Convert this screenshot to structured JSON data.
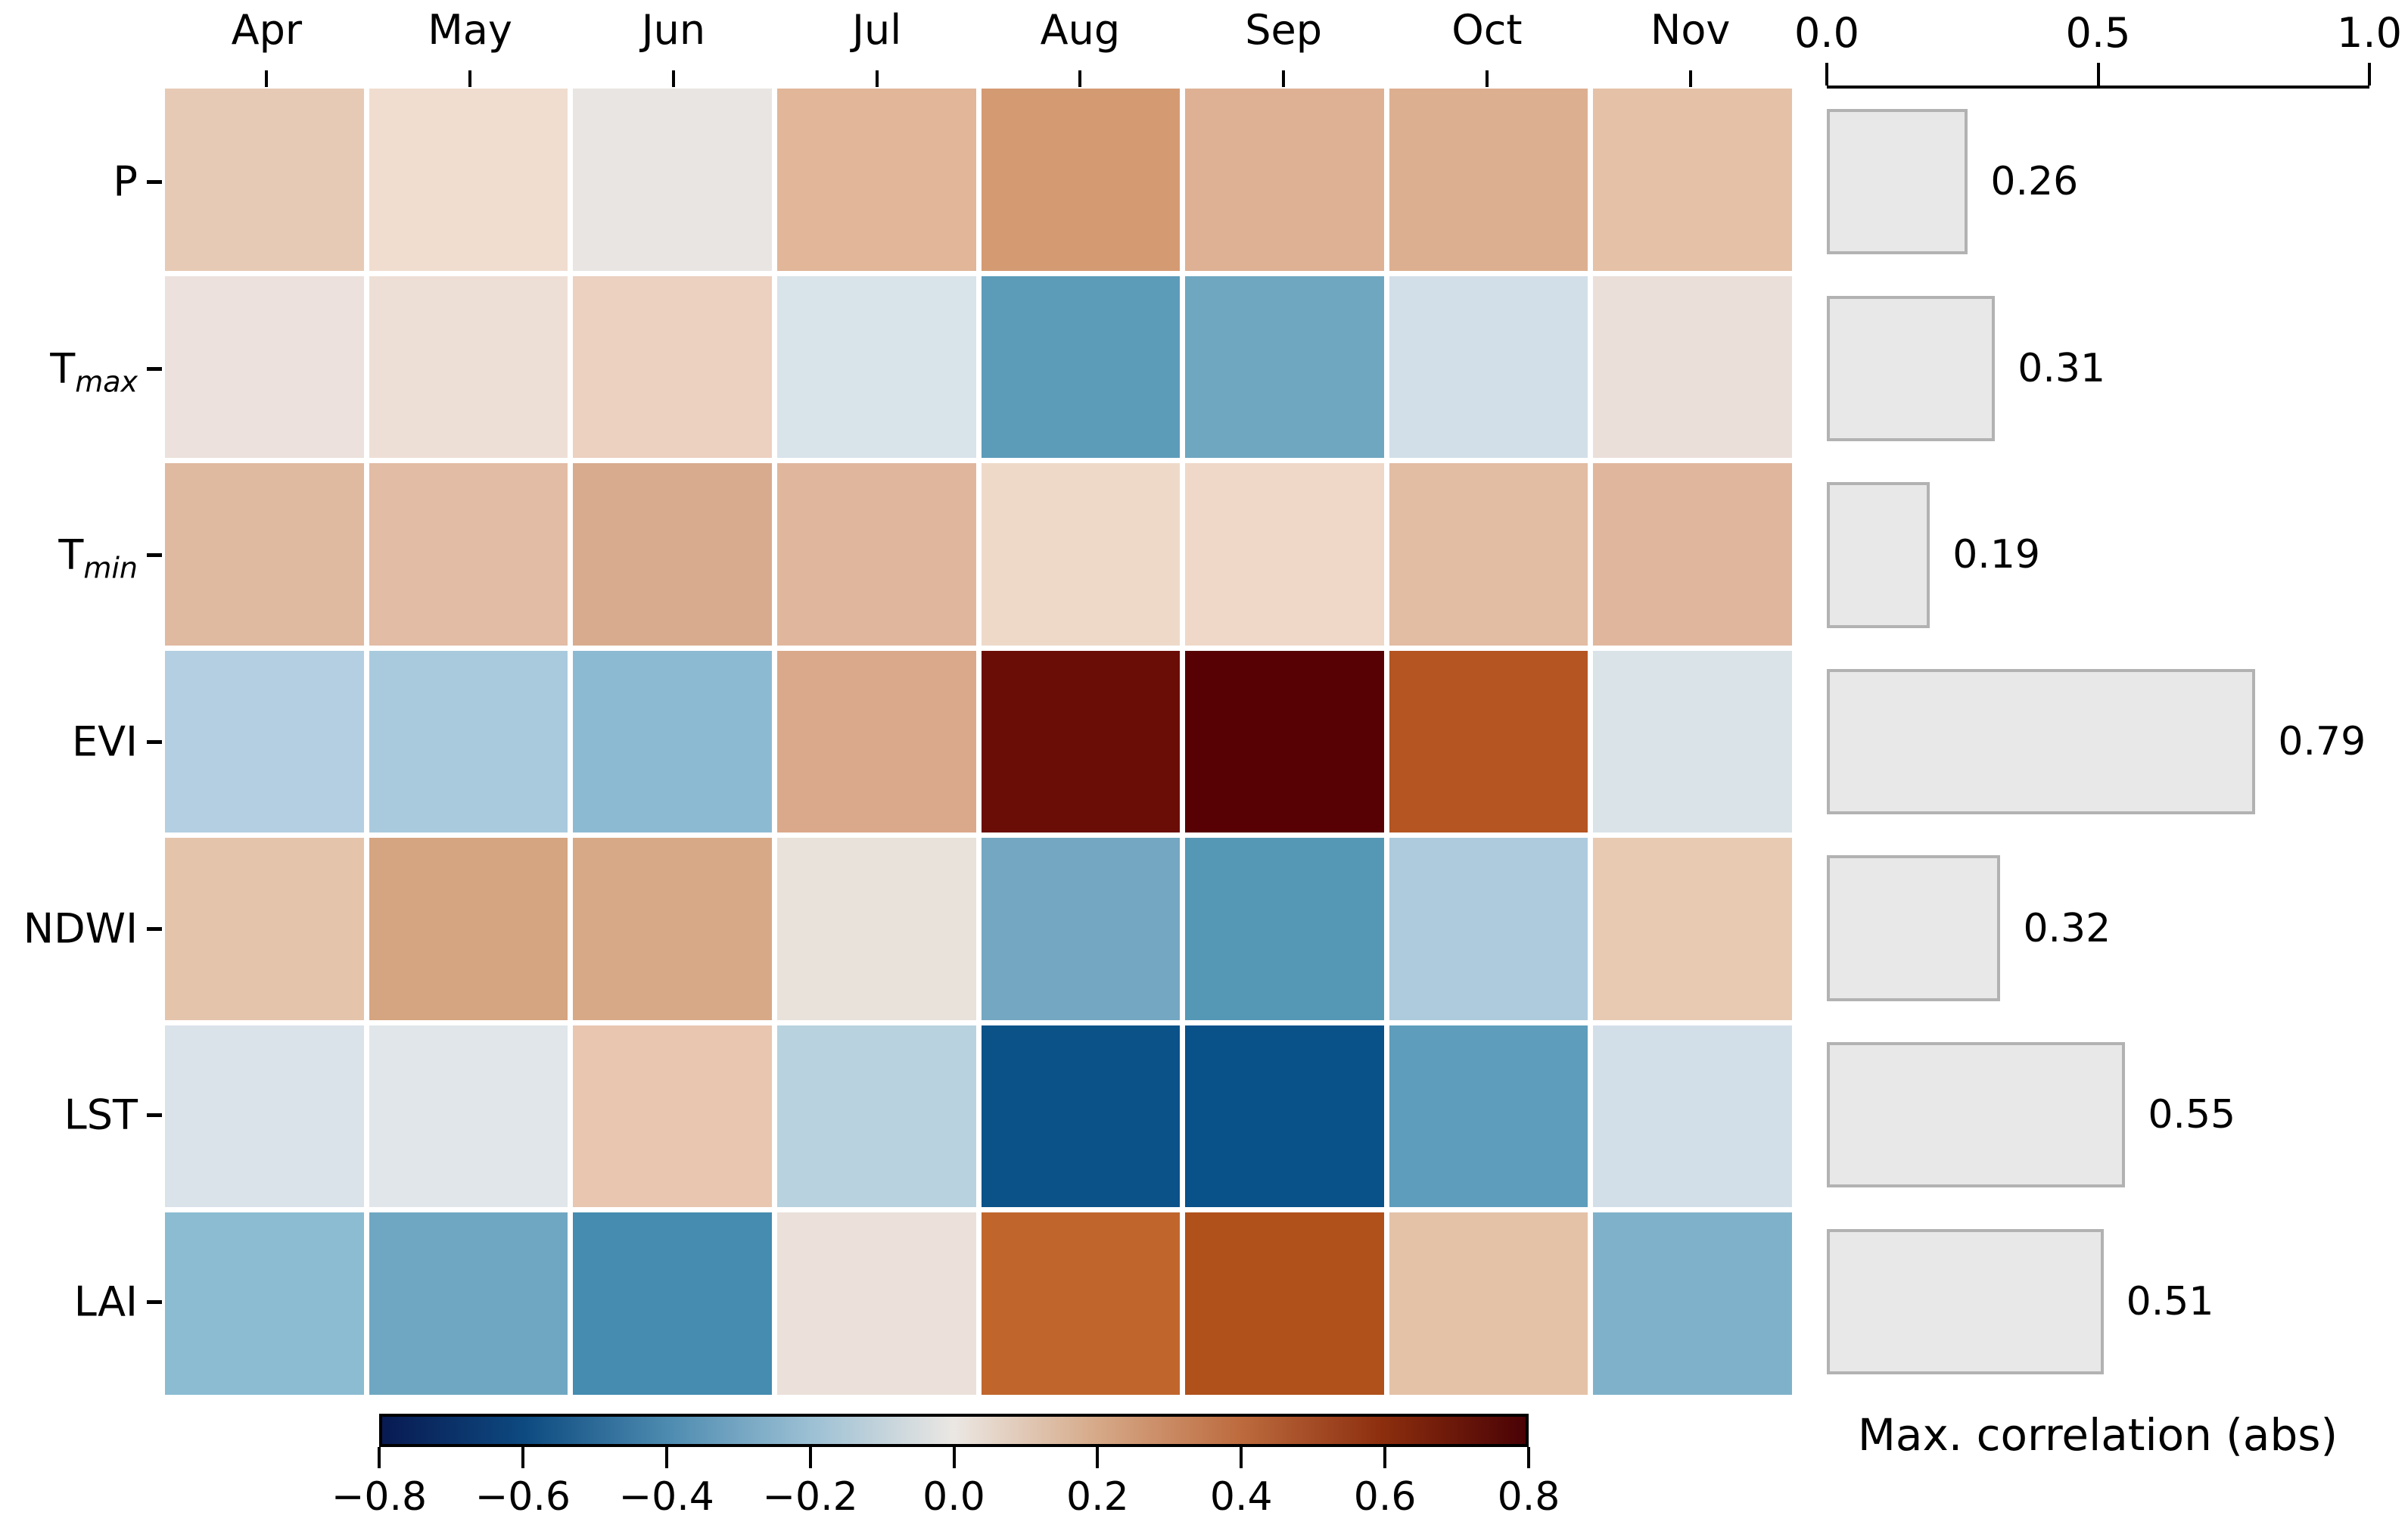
{
  "figure": {
    "bar_axis_title": "Max. correlation (abs)"
  },
  "chart_data": [
    {
      "type": "heatmap",
      "title": "",
      "x_ticklabels": [
        "Apr",
        "May",
        "Jun",
        "Jul",
        "Aug",
        "Sep",
        "Oct",
        "Nov"
      ],
      "y_ticklabels": [
        {
          "text": "P",
          "pre": "P",
          "sub": ""
        },
        {
          "text": "Tmax",
          "pre": "T",
          "sub": "max"
        },
        {
          "text": "Tmin",
          "pre": "T",
          "sub": "min"
        },
        {
          "text": "EVI",
          "pre": "EVI",
          "sub": ""
        },
        {
          "text": "NDWI",
          "pre": "NDWI",
          "sub": ""
        },
        {
          "text": "LST",
          "pre": "LST",
          "sub": ""
        },
        {
          "text": "LAI",
          "pre": "LAI",
          "sub": ""
        }
      ],
      "values": [
        [
          0.14,
          0.08,
          0.01,
          0.19,
          0.26,
          0.2,
          0.21,
          0.15
        ],
        [
          0.05,
          0.07,
          0.12,
          -0.08,
          -0.31,
          -0.27,
          -0.1,
          0.06
        ],
        [
          0.16,
          0.15,
          0.19,
          0.16,
          0.07,
          0.07,
          0.15,
          0.16
        ],
        [
          -0.2,
          -0.23,
          -0.3,
          0.24,
          0.72,
          0.79,
          0.47,
          -0.07
        ],
        [
          0.15,
          0.24,
          0.22,
          0.02,
          -0.26,
          -0.32,
          -0.18,
          0.13
        ],
        [
          -0.06,
          -0.04,
          0.13,
          -0.16,
          -0.54,
          -0.55,
          -0.31,
          -0.08
        ],
        [
          -0.28,
          -0.35,
          -0.4,
          0.03,
          0.45,
          0.51,
          0.15,
          -0.3
        ]
      ],
      "cell_colors": [
        [
          "#e7cab5",
          "#f0ddcf",
          "#e9e5e2",
          "#e1b699",
          "#d49b73",
          "#deb194",
          "#ddaf91",
          "#e5c1a7"
        ],
        [
          "#ece1dc",
          "#eedfd6",
          "#ecd0c0",
          "#d8e3ea",
          "#5c9cb9",
          "#6fa7c0",
          "#d2dfe9",
          "#ebdfda"
        ],
        [
          "#e0b9a1",
          "#e2bca4",
          "#d8ab8e",
          "#e0b79d",
          "#eed9c9",
          "#efd8c8",
          "#e2bca3",
          "#e0b79d"
        ],
        [
          "#b3cfe1",
          "#a9cadd",
          "#8dbad3",
          "#daa98b",
          "#6b0d07",
          "#570105",
          "#b45522",
          "#d9e3e8"
        ],
        [
          "#e5c4ac",
          "#d5a481",
          "#d8a987",
          "#e9e2da",
          "#74a7c1",
          "#5598b5",
          "#aecbdd",
          "#e8cab3"
        ],
        [
          "#dae2ea",
          "#e0e6e9",
          "#e8c6b0",
          "#b8d2df",
          "#0b5289",
          "#085189",
          "#5f9dbc",
          "#d3dfe8"
        ],
        [
          "#8bbcd2",
          "#6fa7c2",
          "#458cb0",
          "#ebe0da",
          "#c0662d",
          "#b0511b",
          "#e4c2a8",
          "#7fb2ca"
        ]
      ],
      "vmin": -0.8,
      "vmax": 0.8,
      "grid": false
    },
    {
      "type": "bar",
      "orientation": "horizontal",
      "categories": [
        "P",
        "Tmax",
        "Tmin",
        "EVI",
        "NDWI",
        "LST",
        "LAI"
      ],
      "values": [
        0.26,
        0.31,
        0.19,
        0.79,
        0.32,
        0.55,
        0.51
      ],
      "value_labels": [
        "0.26",
        "0.31",
        "0.19",
        "0.79",
        "0.32",
        "0.55",
        "0.51"
      ],
      "xlabel": "Max. correlation (abs)",
      "xlim": [
        0.0,
        1.0
      ],
      "x_ticklabels": [
        "0.0",
        "0.5",
        "1.0"
      ],
      "x_tick_positions": [
        0.0,
        0.5,
        1.0
      ],
      "bar_fill": "#e9e8e8",
      "bar_edge": "#b2b2b2",
      "legend": "none"
    },
    {
      "type": "colorbar",
      "ticklabels": [
        "−0.8",
        "−0.6",
        "−0.4",
        "−0.2",
        "0.0",
        "0.2",
        "0.4",
        "0.6",
        "0.8"
      ],
      "tick_positions": [
        -0.8,
        -0.6,
        -0.4,
        -0.2,
        0.0,
        0.2,
        0.4,
        0.6,
        0.8
      ],
      "range": [
        -0.8,
        0.8
      ],
      "gradient_stops": [
        {
          "pos": 0,
          "color": "#081a52"
        },
        {
          "pos": 12.5,
          "color": "#0d4a80"
        },
        {
          "pos": 25,
          "color": "#4d8bb0"
        },
        {
          "pos": 37.5,
          "color": "#9cc0d4"
        },
        {
          "pos": 50,
          "color": "#ebe7e3"
        },
        {
          "pos": 62.5,
          "color": "#d6a988"
        },
        {
          "pos": 75,
          "color": "#bd6b3e"
        },
        {
          "pos": 87.5,
          "color": "#8c2e0e"
        },
        {
          "pos": 100,
          "color": "#4a0205"
        }
      ]
    }
  ]
}
